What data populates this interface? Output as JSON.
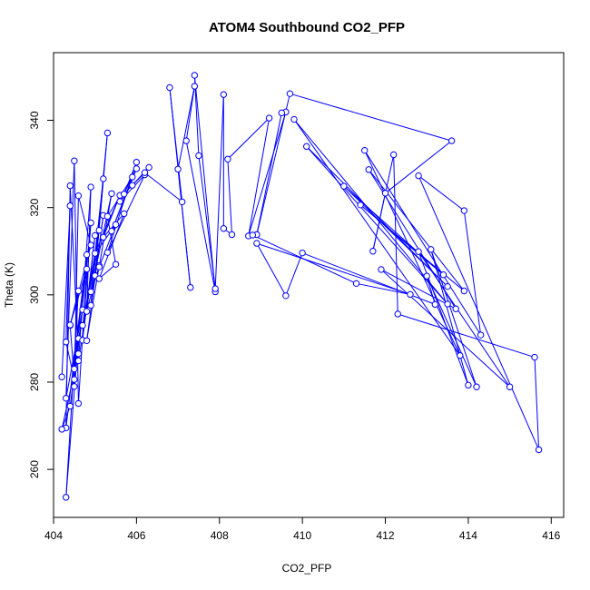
{
  "chart_data": {
    "type": "line",
    "title": "ATOM4 Southbound CO2_PFP",
    "xlabel": "CO2_PFP",
    "ylabel": "Theta (K)",
    "xlim": [
      404.0,
      416.3
    ],
    "ylim": [
      249.0,
      355.5
    ],
    "xticks": [
      404,
      406,
      408,
      410,
      412,
      414,
      416
    ],
    "yticks": [
      260,
      280,
      300,
      320,
      340
    ],
    "grid": false,
    "legend": "none",
    "series": [
      {
        "color": "#0000ff",
        "marker": "open-circle",
        "points": [
          [
            404.2,
            281.2
          ],
          [
            404.4,
            320.4
          ],
          [
            404.3,
            289.2
          ],
          [
            404.5,
            280.6
          ],
          [
            404.4,
            293.0
          ],
          [
            404.6,
            300.9
          ],
          [
            404.3,
            253.6
          ],
          [
            404.6,
            290.0
          ],
          [
            404.5,
            283.0
          ],
          [
            404.8,
            309.2
          ],
          [
            404.3,
            269.5
          ],
          [
            404.4,
            325.0
          ],
          [
            404.6,
            286.5
          ],
          [
            404.2,
            269.2
          ],
          [
            404.4,
            274.5
          ],
          [
            404.7,
            296.6
          ],
          [
            404.3,
            276.3
          ],
          [
            404.5,
            330.7
          ],
          [
            404.6,
            275.1
          ],
          [
            404.8,
            305.9
          ],
          [
            404.4,
            293.1
          ],
          [
            404.9,
            311.4
          ],
          [
            404.6,
            322.7
          ],
          [
            404.5,
            279.0
          ],
          [
            404.9,
            316.5
          ],
          [
            404.7,
            289.6
          ],
          [
            405.0,
            313.6
          ],
          [
            404.8,
            296.2
          ],
          [
            404.9,
            324.7
          ],
          [
            404.6,
            284.9
          ],
          [
            405.1,
            314.8
          ],
          [
            404.7,
            293.0
          ],
          [
            405.1,
            306.7
          ],
          [
            404.8,
            289.5
          ],
          [
            405.2,
            318.2
          ],
          [
            404.9,
            297.6
          ],
          [
            405.3,
            337.1
          ],
          [
            405.0,
            304.4
          ],
          [
            405.2,
            326.6
          ],
          [
            404.9,
            300.7
          ],
          [
            405.4,
            323.2
          ],
          [
            405.1,
            306.4
          ],
          [
            405.5,
            316.1
          ],
          [
            405.0,
            309.5
          ],
          [
            405.6,
            322.8
          ],
          [
            405.2,
            313.2
          ],
          [
            405.7,
            318.6
          ],
          [
            405.1,
            303.7
          ],
          [
            405.5,
            307.0
          ],
          [
            405.3,
            318.0
          ],
          [
            405.9,
            327.0
          ],
          [
            405.4,
            314.6
          ],
          [
            406.0,
            328.9
          ],
          [
            405.6,
            321.4
          ],
          [
            406.2,
            327.5
          ],
          [
            405.3,
            309.7
          ],
          [
            406.0,
            330.4
          ],
          [
            405.7,
            323.1
          ],
          [
            406.3,
            329.2
          ],
          [
            405.9,
            325.1
          ],
          [
            406.2,
            328.0
          ],
          [
            407.1,
            321.3
          ],
          [
            406.8,
            347.5
          ],
          [
            407.3,
            301.7
          ],
          [
            407.0,
            328.8
          ],
          [
            407.4,
            347.8
          ],
          [
            407.2,
            335.3
          ],
          [
            407.9,
            300.7
          ],
          [
            407.4,
            350.3
          ],
          [
            407.5,
            331.9
          ],
          [
            407.9,
            301.4
          ],
          [
            408.1,
            345.9
          ],
          [
            408.1,
            315.2
          ],
          [
            408.3,
            313.8
          ],
          [
            408.2,
            331.1
          ],
          [
            409.2,
            340.5
          ],
          [
            408.7,
            313.5
          ],
          [
            409.6,
            341.9
          ],
          [
            409.5,
            341.7
          ],
          [
            408.9,
            313.8
          ],
          [
            409.7,
            346.1
          ],
          [
            413.6,
            335.3
          ],
          [
            412.0,
            323.3
          ],
          [
            411.7,
            310.0
          ],
          [
            412.2,
            332.1
          ],
          [
            412.3,
            295.6
          ],
          [
            415.6,
            285.7
          ],
          [
            415.7,
            264.5
          ],
          [
            412.8,
            327.3
          ],
          [
            413.9,
            319.3
          ],
          [
            414.3,
            290.8
          ],
          [
            411.5,
            333.1
          ],
          [
            413.8,
            286.1
          ],
          [
            409.8,
            340.2
          ],
          [
            413.5,
            297.9
          ],
          [
            410.1,
            334.0
          ],
          [
            413.5,
            301.9
          ],
          [
            411.0,
            324.9
          ],
          [
            413.4,
            304.6
          ],
          [
            411.4,
            320.6
          ],
          [
            413.9,
            300.9
          ],
          [
            411.6,
            328.7
          ],
          [
            413.7,
            296.8
          ],
          [
            411.9,
            305.8
          ],
          [
            415.0,
            278.9
          ],
          [
            412.8,
            309.9
          ],
          [
            414.0,
            279.3
          ],
          [
            413.1,
            310.4
          ],
          [
            414.2,
            278.9
          ],
          [
            413.0,
            304.3
          ],
          [
            413.2,
            297.8
          ],
          [
            410.0,
            309.6
          ],
          [
            409.6,
            299.8
          ],
          [
            408.9,
            311.8
          ],
          [
            412.6,
            300.1
          ],
          [
            411.3,
            302.6
          ],
          [
            408.8,
            313.7
          ]
        ]
      }
    ]
  }
}
